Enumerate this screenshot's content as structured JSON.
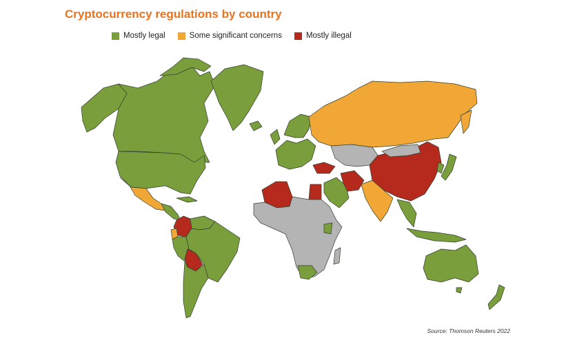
{
  "title": "Cryptocurrency regulations by country",
  "legend": [
    {
      "label": "Mostly legal",
      "color": "#7a9e3b"
    },
    {
      "label": "Some significant concerns",
      "color": "#f0a736"
    },
    {
      "label": "Mostly illegal",
      "color": "#b52a1c"
    }
  ],
  "no_data_color": "#b4b4b4",
  "border_color": "#2f3e2f",
  "source": "Source: Thomson Reuters 2022"
}
